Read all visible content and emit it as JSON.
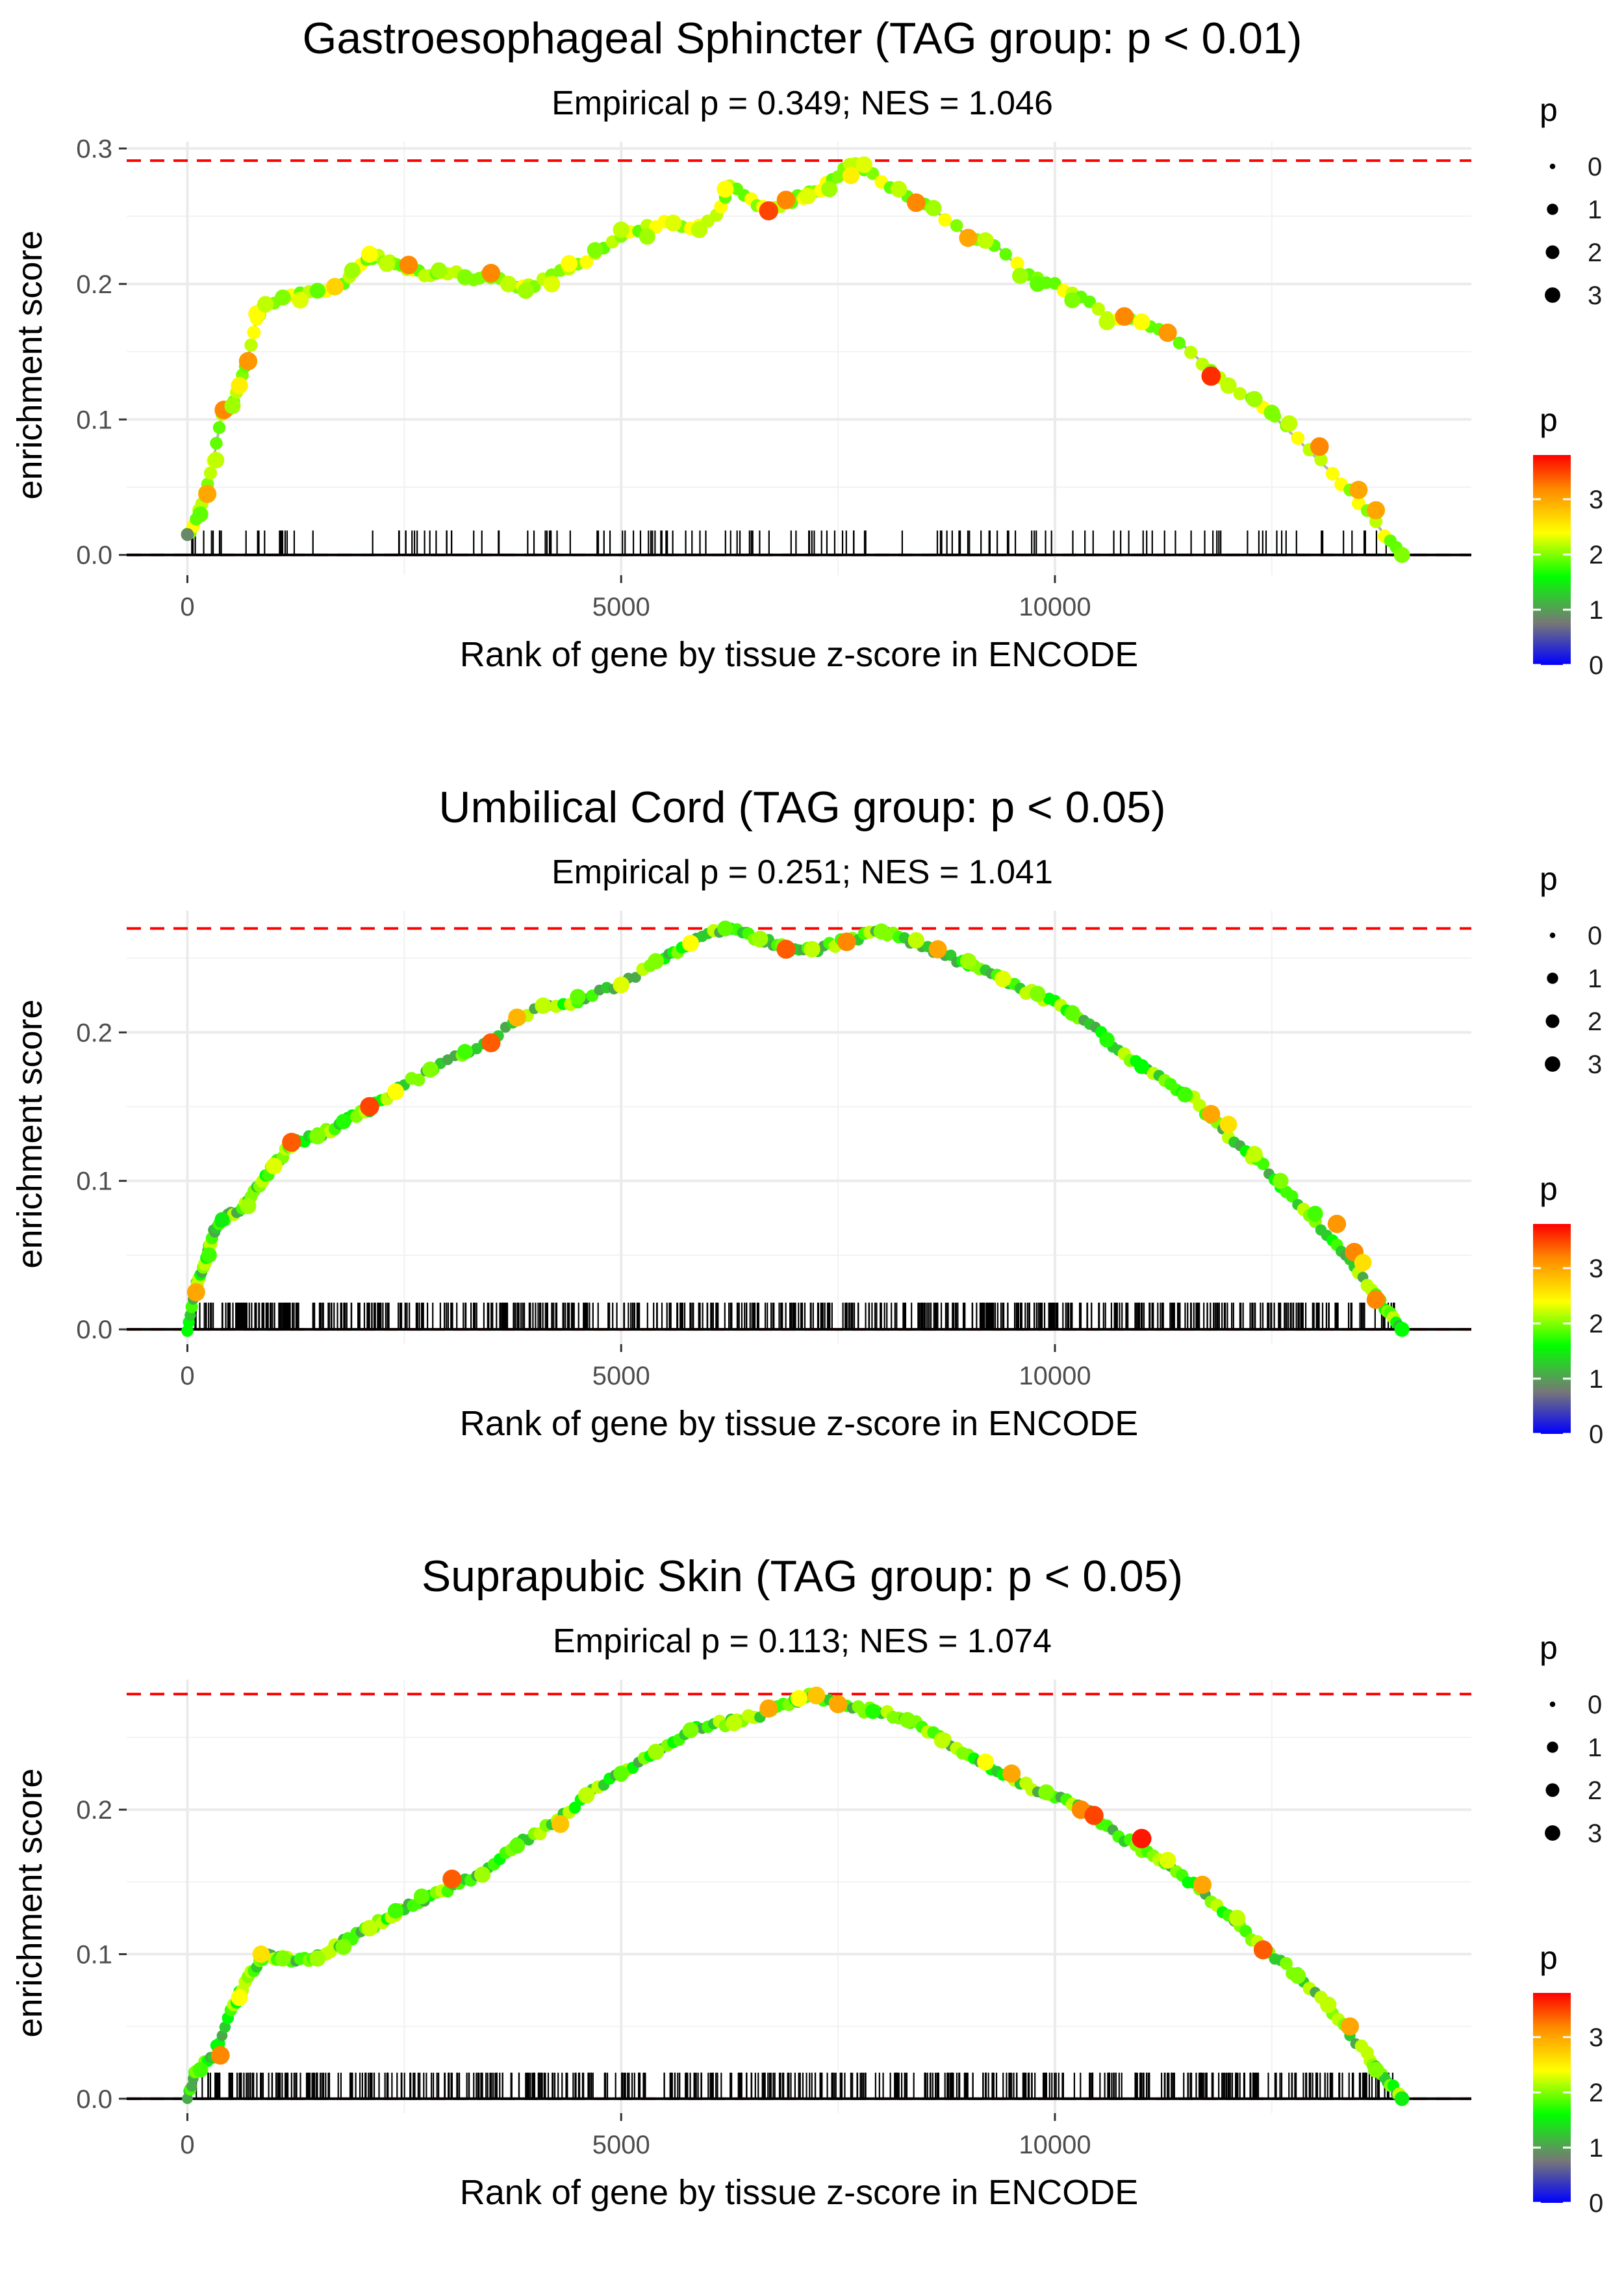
{
  "chart_data": [
    {
      "type": "scatter",
      "title": "Gastroesophageal Sphincter (TAG group: p < 0.01)",
      "subtitle": "Empirical p = 0.349; NES = 1.046",
      "xlabel": "Rank of gene by tissue z-score in ENCODE",
      "ylabel": "enrichment score",
      "xlim": [
        -700,
        14800
      ],
      "ylim": [
        -0.015,
        0.305
      ],
      "xticks": [
        0,
        5000,
        10000
      ],
      "xtick_labels": [
        "0",
        "5000",
        "10000"
      ],
      "yticks": [
        0.0,
        0.1,
        0.2,
        0.3
      ],
      "ytick_labels": [
        "0.0",
        "0.1",
        "0.2",
        "0.3"
      ],
      "max_es": 0.291,
      "gene_count": 14000,
      "n_hits": 150,
      "hit_mode": "clustered",
      "rug_height": 0.018,
      "seed": 11,
      "curve": [
        [
          0,
          0.015
        ],
        [
          100,
          0.025
        ],
        [
          200,
          0.045
        ],
        [
          300,
          0.07
        ],
        [
          400,
          0.105
        ],
        [
          500,
          0.11
        ],
        [
          600,
          0.125
        ],
        [
          700,
          0.145
        ],
        [
          800,
          0.175
        ],
        [
          900,
          0.185
        ],
        [
          1200,
          0.19
        ],
        [
          1500,
          0.195
        ],
        [
          1800,
          0.2
        ],
        [
          2000,
          0.215
        ],
        [
          2200,
          0.22
        ],
        [
          2400,
          0.215
        ],
        [
          2600,
          0.21
        ],
        [
          2800,
          0.205
        ],
        [
          3000,
          0.208
        ],
        [
          3300,
          0.205
        ],
        [
          3500,
          0.205
        ],
        [
          3800,
          0.198
        ],
        [
          4000,
          0.2
        ],
        [
          4300,
          0.21
        ],
        [
          4600,
          0.218
        ],
        [
          4900,
          0.23
        ],
        [
          5200,
          0.24
        ],
        [
          5500,
          0.245
        ],
        [
          5800,
          0.24
        ],
        [
          6100,
          0.25
        ],
        [
          6250,
          0.272
        ],
        [
          6500,
          0.262
        ],
        [
          6700,
          0.255
        ],
        [
          6900,
          0.26
        ],
        [
          7100,
          0.265
        ],
        [
          7300,
          0.27
        ],
        [
          7500,
          0.28
        ],
        [
          7700,
          0.29
        ],
        [
          8000,
          0.275
        ],
        [
          8300,
          0.265
        ],
        [
          8600,
          0.255
        ],
        [
          9000,
          0.235
        ],
        [
          9300,
          0.23
        ],
        [
          9700,
          0.205
        ],
        [
          10000,
          0.2
        ],
        [
          10300,
          0.19
        ],
        [
          10600,
          0.175
        ],
        [
          11000,
          0.172
        ],
        [
          11300,
          0.165
        ],
        [
          11700,
          0.142
        ],
        [
          12000,
          0.125
        ],
        [
          12400,
          0.11
        ],
        [
          12800,
          0.085
        ],
        [
          13200,
          0.06
        ],
        [
          13500,
          0.04
        ],
        [
          13800,
          0.015
        ],
        [
          14000,
          0.0
        ]
      ],
      "dots": [
        [
          0,
          0.015,
          0.9
        ],
        [
          150,
          0.03,
          1.9
        ],
        [
          230,
          0.045,
          3.0
        ],
        [
          330,
          0.07,
          2.2
        ],
        [
          420,
          0.107,
          3.2
        ],
        [
          520,
          0.11,
          2.1
        ],
        [
          600,
          0.125,
          2.5
        ],
        [
          700,
          0.143,
          3.1
        ],
        [
          800,
          0.178,
          2.4
        ],
        [
          900,
          0.185,
          2.2
        ],
        [
          1100,
          0.19,
          2.0
        ],
        [
          1300,
          0.188,
          2.3
        ],
        [
          1500,
          0.195,
          1.9
        ],
        [
          1700,
          0.198,
          2.7
        ],
        [
          1900,
          0.21,
          2.1
        ],
        [
          2100,
          0.222,
          2.4
        ],
        [
          2300,
          0.215,
          2.2
        ],
        [
          2550,
          0.214,
          3.2
        ],
        [
          2900,
          0.21,
          2.1
        ],
        [
          3200,
          0.205,
          2.0
        ],
        [
          3500,
          0.208,
          3.2
        ],
        [
          3700,
          0.2,
          2.2
        ],
        [
          3900,
          0.195,
          2.1
        ],
        [
          4200,
          0.2,
          2.3
        ],
        [
          4400,
          0.215,
          2.4
        ],
        [
          4700,
          0.225,
          2.0
        ],
        [
          5000,
          0.24,
          2.2
        ],
        [
          5300,
          0.235,
          2.1
        ],
        [
          5600,
          0.245,
          2.3
        ],
        [
          5900,
          0.24,
          2.2
        ],
        [
          6200,
          0.27,
          2.4
        ],
        [
          6700,
          0.254,
          3.5
        ],
        [
          6900,
          0.262,
          3.2
        ],
        [
          7150,
          0.265,
          2.3
        ],
        [
          7400,
          0.27,
          2.1
        ],
        [
          7650,
          0.28,
          2.5
        ],
        [
          7800,
          0.288,
          2.3
        ],
        [
          8200,
          0.27,
          2.2
        ],
        [
          8400,
          0.26,
          3.2
        ],
        [
          8600,
          0.256,
          2.1
        ],
        [
          9000,
          0.234,
          3.0
        ],
        [
          9200,
          0.232,
          2.2
        ],
        [
          9600,
          0.206,
          2.1
        ],
        [
          9800,
          0.2,
          1.9
        ],
        [
          10200,
          0.188,
          2.0
        ],
        [
          10600,
          0.172,
          2.2
        ],
        [
          10800,
          0.176,
          3.2
        ],
        [
          11000,
          0.172,
          2.4
        ],
        [
          11300,
          0.164,
          3.1
        ],
        [
          11800,
          0.132,
          3.6
        ],
        [
          12000,
          0.125,
          2.2
        ],
        [
          12300,
          0.115,
          2.1
        ],
        [
          12500,
          0.105,
          2.0
        ],
        [
          12700,
          0.097,
          2.2
        ],
        [
          13050,
          0.08,
          3.2
        ],
        [
          13500,
          0.048,
          3.0
        ],
        [
          13700,
          0.033,
          3.0
        ],
        [
          14000,
          0.0,
          2.0
        ]
      ]
    },
    {
      "type": "scatter",
      "title": "Umbilical Cord (TAG group: p < 0.05)",
      "subtitle": "Empirical p = 0.251; NES = 1.041",
      "xlabel": "Rank of gene by tissue z-score in ENCODE",
      "ylabel": "enrichment score",
      "xlim": [
        -700,
        14800
      ],
      "ylim": [
        -0.01,
        0.282
      ],
      "xticks": [
        0,
        5000,
        10000
      ],
      "xtick_labels": [
        "0",
        "5000",
        "10000"
      ],
      "yticks": [
        0.0,
        0.1,
        0.2
      ],
      "ytick_labels": [
        "0.0",
        "0.1",
        "0.2"
      ],
      "max_es": 0.27,
      "gene_count": 14000,
      "n_hits": 620,
      "hit_mode": "dense",
      "rug_height": 0.018,
      "seed": 23,
      "curve": [
        [
          0,
          0.0
        ],
        [
          100,
          0.03
        ],
        [
          200,
          0.045
        ],
        [
          300,
          0.065
        ],
        [
          400,
          0.074
        ],
        [
          600,
          0.08
        ],
        [
          800,
          0.095
        ],
        [
          1000,
          0.11
        ],
        [
          1200,
          0.125
        ],
        [
          1500,
          0.13
        ],
        [
          1800,
          0.14
        ],
        [
          2100,
          0.148
        ],
        [
          2500,
          0.165
        ],
        [
          3000,
          0.18
        ],
        [
          3500,
          0.195
        ],
        [
          4000,
          0.215
        ],
        [
          4500,
          0.222
        ],
        [
          5000,
          0.232
        ],
        [
          5500,
          0.25
        ],
        [
          5800,
          0.26
        ],
        [
          6200,
          0.27
        ],
        [
          6600,
          0.263
        ],
        [
          6900,
          0.256
        ],
        [
          7200,
          0.255
        ],
        [
          7600,
          0.262
        ],
        [
          8000,
          0.268
        ],
        [
          8400,
          0.26
        ],
        [
          8800,
          0.25
        ],
        [
          9200,
          0.243
        ],
        [
          9600,
          0.23
        ],
        [
          10000,
          0.22
        ],
        [
          10400,
          0.205
        ],
        [
          10800,
          0.185
        ],
        [
          11200,
          0.17
        ],
        [
          11600,
          0.155
        ],
        [
          12000,
          0.13
        ],
        [
          12400,
          0.11
        ],
        [
          12800,
          0.085
        ],
        [
          13200,
          0.06
        ],
        [
          13500,
          0.038
        ],
        [
          13800,
          0.015
        ],
        [
          14000,
          0.0
        ]
      ],
      "dots": [
        [
          100,
          0.025,
          3.0
        ],
        [
          250,
          0.05,
          1.8
        ],
        [
          400,
          0.074,
          1.5
        ],
        [
          700,
          0.083,
          2.1
        ],
        [
          1000,
          0.11,
          2.3
        ],
        [
          1200,
          0.126,
          3.4
        ],
        [
          1500,
          0.13,
          2.0
        ],
        [
          1800,
          0.14,
          1.7
        ],
        [
          2100,
          0.15,
          3.5
        ],
        [
          2400,
          0.16,
          2.4
        ],
        [
          2800,
          0.175,
          2.0
        ],
        [
          3200,
          0.187,
          1.8
        ],
        [
          3500,
          0.193,
          3.4
        ],
        [
          3800,
          0.21,
          2.9
        ],
        [
          4100,
          0.218,
          2.2
        ],
        [
          4500,
          0.224,
          1.9
        ],
        [
          5000,
          0.232,
          2.3
        ],
        [
          5400,
          0.248,
          2.0
        ],
        [
          5800,
          0.26,
          2.4
        ],
        [
          6200,
          0.27,
          1.9
        ],
        [
          6600,
          0.263,
          2.1
        ],
        [
          6900,
          0.256,
          3.4
        ],
        [
          7200,
          0.256,
          2.2
        ],
        [
          7600,
          0.261,
          3.2
        ],
        [
          8000,
          0.268,
          2.0
        ],
        [
          8400,
          0.262,
          2.2
        ],
        [
          8650,
          0.256,
          3.0
        ],
        [
          9000,
          0.248,
          2.1
        ],
        [
          9400,
          0.236,
          2.3
        ],
        [
          9800,
          0.226,
          2.0
        ],
        [
          10200,
          0.213,
          1.9
        ],
        [
          10600,
          0.195,
          1.7
        ],
        [
          11000,
          0.177,
          1.6
        ],
        [
          11500,
          0.158,
          1.8
        ],
        [
          11800,
          0.145,
          3.0
        ],
        [
          12000,
          0.138,
          2.6
        ],
        [
          12300,
          0.118,
          2.2
        ],
        [
          12600,
          0.1,
          2.0
        ],
        [
          13000,
          0.078,
          1.8
        ],
        [
          13250,
          0.071,
          3.1
        ],
        [
          13450,
          0.052,
          3.2
        ],
        [
          13550,
          0.045,
          2.6
        ],
        [
          13700,
          0.02,
          3.2
        ],
        [
          14000,
          0.0,
          1.6
        ]
      ]
    },
    {
      "type": "scatter",
      "title": "Suprapubic Skin (TAG group: p < 0.05)",
      "subtitle": "Empirical p = 0.113; NES = 1.074",
      "xlabel": "Rank of gene by tissue z-score in ENCODE",
      "ylabel": "enrichment score",
      "xlim": [
        -700,
        14800
      ],
      "ylim": [
        -0.01,
        0.29
      ],
      "xticks": [
        0,
        5000,
        10000
      ],
      "xtick_labels": [
        "0",
        "5000",
        "10000"
      ],
      "yticks": [
        0.0,
        0.1,
        0.2
      ],
      "ytick_labels": [
        "0.0",
        "0.1",
        "0.2"
      ],
      "max_es": 0.28,
      "gene_count": 14000,
      "n_hits": 540,
      "hit_mode": "dense",
      "rug_height": 0.018,
      "seed": 37,
      "curve": [
        [
          0,
          0.0
        ],
        [
          100,
          0.02
        ],
        [
          300,
          0.03
        ],
        [
          500,
          0.06
        ],
        [
          700,
          0.085
        ],
        [
          900,
          0.1
        ],
        [
          1100,
          0.097
        ],
        [
          1400,
          0.095
        ],
        [
          1700,
          0.105
        ],
        [
          2000,
          0.115
        ],
        [
          2300,
          0.125
        ],
        [
          2600,
          0.135
        ],
        [
          3000,
          0.145
        ],
        [
          3400,
          0.155
        ],
        [
          3800,
          0.175
        ],
        [
          4200,
          0.19
        ],
        [
          4600,
          0.21
        ],
        [
          5000,
          0.225
        ],
        [
          5400,
          0.24
        ],
        [
          5800,
          0.255
        ],
        [
          6200,
          0.26
        ],
        [
          6600,
          0.265
        ],
        [
          7000,
          0.275
        ],
        [
          7200,
          0.28
        ],
        [
          7600,
          0.27
        ],
        [
          8000,
          0.268
        ],
        [
          8400,
          0.26
        ],
        [
          8800,
          0.245
        ],
        [
          9200,
          0.232
        ],
        [
          9600,
          0.218
        ],
        [
          10000,
          0.21
        ],
        [
          10400,
          0.198
        ],
        [
          10800,
          0.18
        ],
        [
          11200,
          0.165
        ],
        [
          11600,
          0.148
        ],
        [
          12000,
          0.125
        ],
        [
          12400,
          0.105
        ],
        [
          12800,
          0.085
        ],
        [
          13200,
          0.06
        ],
        [
          13600,
          0.03
        ],
        [
          13800,
          0.015
        ],
        [
          14000,
          0.0
        ]
      ],
      "dots": [
        [
          150,
          0.02,
          1.8
        ],
        [
          380,
          0.03,
          3.2
        ],
        [
          600,
          0.07,
          2.4
        ],
        [
          850,
          0.1,
          2.6
        ],
        [
          1100,
          0.097,
          2.0
        ],
        [
          1500,
          0.097,
          2.1
        ],
        [
          1800,
          0.105,
          2.0
        ],
        [
          2100,
          0.118,
          2.2
        ],
        [
          2400,
          0.13,
          1.8
        ],
        [
          2700,
          0.14,
          1.9
        ],
        [
          3050,
          0.152,
          3.4
        ],
        [
          3400,
          0.155,
          2.1
        ],
        [
          3800,
          0.175,
          1.9
        ],
        [
          4300,
          0.19,
          2.8
        ],
        [
          4600,
          0.21,
          2.2
        ],
        [
          5000,
          0.225,
          1.9
        ],
        [
          5400,
          0.24,
          2.1
        ],
        [
          5800,
          0.255,
          2.0
        ],
        [
          6300,
          0.26,
          2.2
        ],
        [
          6700,
          0.27,
          3.0
        ],
        [
          7050,
          0.277,
          2.4
        ],
        [
          7250,
          0.279,
          2.8
        ],
        [
          7500,
          0.273,
          3.0
        ],
        [
          7900,
          0.268,
          1.7
        ],
        [
          8300,
          0.262,
          2.0
        ],
        [
          8700,
          0.248,
          2.2
        ],
        [
          9200,
          0.233,
          2.4
        ],
        [
          9500,
          0.225,
          3.0
        ],
        [
          9900,
          0.212,
          2.0
        ],
        [
          10300,
          0.2,
          3.2
        ],
        [
          10450,
          0.196,
          3.5
        ],
        [
          11000,
          0.18,
          3.7
        ],
        [
          11300,
          0.165,
          2.3
        ],
        [
          11700,
          0.148,
          3.0
        ],
        [
          12100,
          0.125,
          2.2
        ],
        [
          12400,
          0.103,
          3.4
        ],
        [
          12800,
          0.085,
          2.0
        ],
        [
          13150,
          0.065,
          2.2
        ],
        [
          13400,
          0.05,
          3.0
        ],
        [
          13700,
          0.02,
          2.0
        ],
        [
          14000,
          0.0,
          1.5
        ]
      ]
    }
  ],
  "legend": {
    "size_title": "p",
    "size_labels": [
      "0",
      "1",
      "2",
      "3"
    ],
    "color_title": "p",
    "color_labels": [
      "3",
      "2",
      "1",
      "0"
    ],
    "colors": [
      "#0000ff",
      "#777777",
      "#00ff00",
      "#ffff00",
      "#ff8800",
      "#ff0000"
    ]
  }
}
